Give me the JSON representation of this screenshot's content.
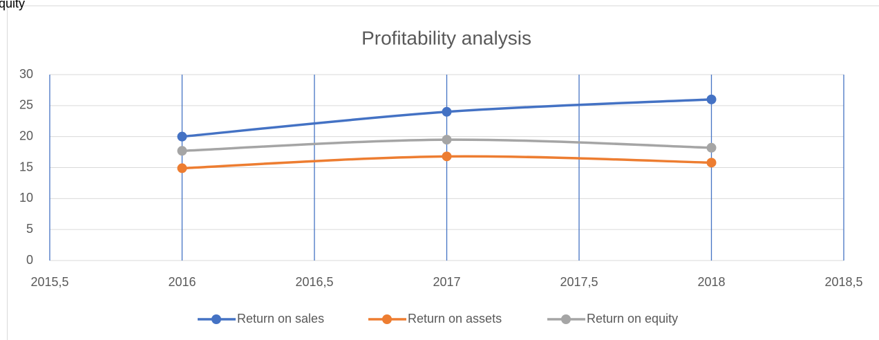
{
  "caption": "quity",
  "chart_data": {
    "type": "line",
    "title": "Profitability analysis",
    "x": [
      2016,
      2017,
      2018
    ],
    "series": [
      {
        "name": "Return on sales",
        "color": "#4472c4",
        "values": [
          20,
          24,
          26
        ]
      },
      {
        "name": "Return on assets",
        "color": "#ed7d31",
        "values": [
          14.9,
          16.8,
          15.8
        ]
      },
      {
        "name": "Return on equity",
        "color": "#a5a5a5",
        "values": [
          17.7,
          19.5,
          18.2
        ]
      }
    ],
    "xlim": [
      2015.5,
      2018.5
    ],
    "xticks": [
      {
        "value": 2015.5,
        "label": "2015,5"
      },
      2016,
      {
        "value": 2016.5,
        "label": "2016,5"
      },
      2017,
      {
        "value": 2017.5,
        "label": "2017,5"
      },
      2018,
      {
        "value": 2018.5,
        "label": "2018,5"
      }
    ],
    "ylim": [
      0,
      30
    ],
    "yticks": [
      0,
      5,
      10,
      15,
      20,
      25,
      30
    ],
    "grid": true,
    "smooth": true,
    "legend": "bottom"
  }
}
